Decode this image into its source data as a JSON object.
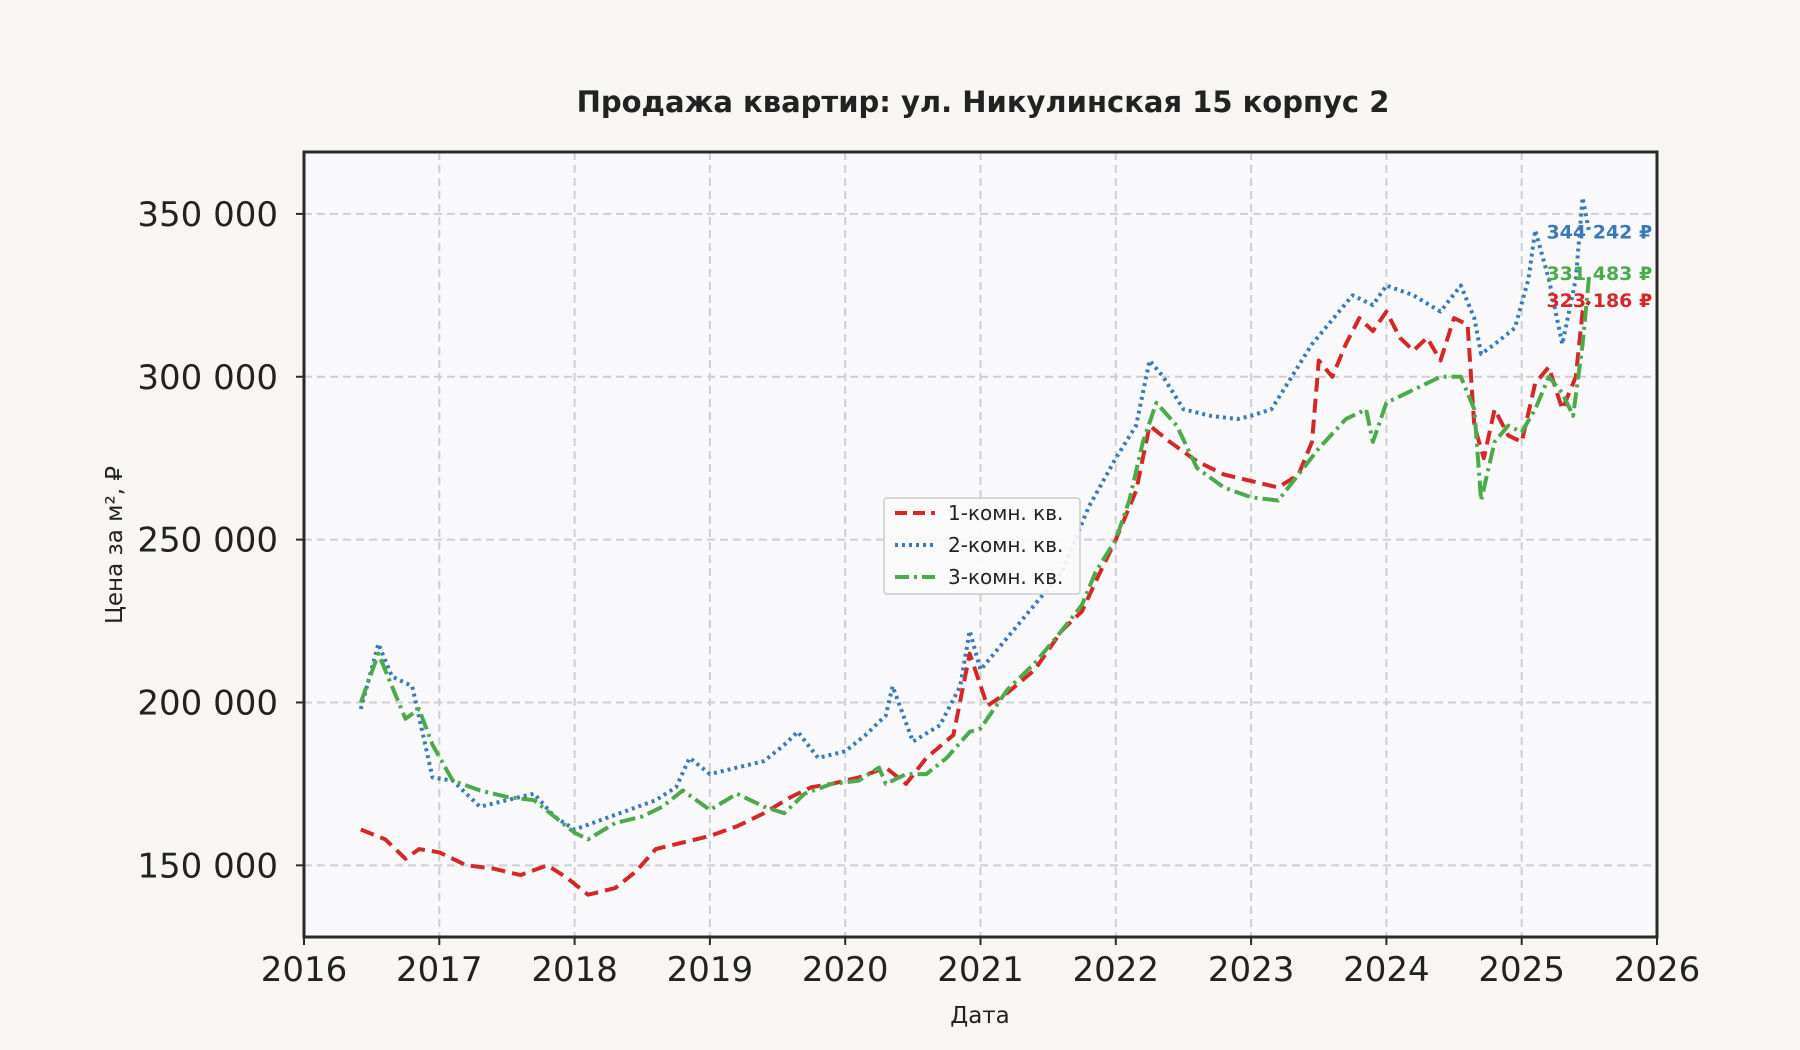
{
  "chart_data": {
    "type": "line",
    "title": "Продажа квартир: ул. Никулинская 15 корпус 2",
    "xlabel": "Дата",
    "ylabel": "Цена за м², ₽",
    "xlim": [
      2016.0,
      2026.0
    ],
    "ylim": [
      128000,
      369000
    ],
    "x_ticks": [
      2016,
      2017,
      2018,
      2019,
      2020,
      2021,
      2022,
      2023,
      2024,
      2025,
      2026
    ],
    "x_tick_labels": [
      "2016",
      "2017",
      "2018",
      "2019",
      "2020",
      "2021",
      "2022",
      "2023",
      "2024",
      "2025",
      "2026"
    ],
    "y_ticks": [
      150000,
      200000,
      250000,
      300000,
      350000
    ],
    "y_tick_labels": [
      "150 000",
      "200 000",
      "250 000",
      "300 000",
      "350 000"
    ],
    "grid": true,
    "legend_position": "center",
    "series": [
      {
        "name": "1-комн. кв.",
        "color": "#d62728",
        "dash": "dashed",
        "end_label": "323 186 ₽",
        "x": [
          2016.42,
          2016.6,
          2016.75,
          2016.85,
          2017.0,
          2017.2,
          2017.4,
          2017.6,
          2017.8,
          2017.95,
          2018.1,
          2018.3,
          2018.45,
          2018.6,
          2018.8,
          2019.0,
          2019.2,
          2019.4,
          2019.6,
          2019.75,
          2019.9,
          2020.1,
          2020.3,
          2020.45,
          2020.6,
          2020.8,
          2020.92,
          2021.05,
          2021.2,
          2021.4,
          2021.6,
          2021.75,
          2021.85,
          2022.0,
          2022.15,
          2022.25,
          2022.4,
          2022.6,
          2022.8,
          2023.0,
          2023.2,
          2023.35,
          2023.45,
          2023.5,
          2023.6,
          2023.7,
          2023.8,
          2023.9,
          2024.0,
          2024.1,
          2024.2,
          2024.3,
          2024.4,
          2024.5,
          2024.6,
          2024.65,
          2024.72,
          2024.8,
          2024.9,
          2025.0,
          2025.1,
          2025.2,
          2025.3,
          2025.4,
          2025.45,
          2025.5
        ],
        "y": [
          161000,
          158000,
          152000,
          155000,
          154000,
          150000,
          149000,
          147000,
          150000,
          146000,
          141000,
          143000,
          148000,
          155000,
          157000,
          159000,
          162000,
          166000,
          171000,
          174000,
          175000,
          177000,
          180000,
          175000,
          183000,
          190000,
          215000,
          199000,
          203000,
          210000,
          222000,
          228000,
          237000,
          250000,
          265000,
          285000,
          280000,
          274000,
          270000,
          268000,
          266000,
          270000,
          280000,
          305000,
          300000,
          310000,
          318000,
          314000,
          320000,
          312000,
          308000,
          312000,
          305000,
          318000,
          316000,
          285000,
          275000,
          290000,
          282000,
          280000,
          298000,
          303000,
          290000,
          300000,
          320000,
          323186
        ]
      },
      {
        "name": "2-комн. кв.",
        "color": "#3a7ab8",
        "dash": "dotted",
        "end_label": "344 242 ₽",
        "x": [
          2016.42,
          2016.55,
          2016.65,
          2016.8,
          2016.95,
          2017.1,
          2017.3,
          2017.5,
          2017.7,
          2017.85,
          2018.0,
          2018.2,
          2018.4,
          2018.6,
          2018.75,
          2018.85,
          2019.0,
          2019.2,
          2019.4,
          2019.55,
          2019.65,
          2019.8,
          2020.0,
          2020.15,
          2020.3,
          2020.35,
          2020.5,
          2020.7,
          2020.85,
          2020.92,
          2021.0,
          2021.2,
          2021.4,
          2021.6,
          2021.8,
          2022.0,
          2022.15,
          2022.25,
          2022.35,
          2022.5,
          2022.7,
          2022.9,
          2023.0,
          2023.15,
          2023.3,
          2023.45,
          2023.55,
          2023.65,
          2023.75,
          2023.9,
          2024.0,
          2024.2,
          2024.4,
          2024.55,
          2024.65,
          2024.7,
          2024.8,
          2024.95,
          2025.05,
          2025.1,
          2025.2,
          2025.3,
          2025.4,
          2025.45,
          2025.5
        ],
        "y": [
          198000,
          218000,
          208000,
          205000,
          177000,
          176000,
          168000,
          170000,
          172000,
          165000,
          161000,
          164000,
          167000,
          170000,
          174000,
          183000,
          178000,
          180000,
          182000,
          187000,
          191000,
          183000,
          185000,
          190000,
          196000,
          205000,
          188000,
          193000,
          205000,
          222000,
          210000,
          220000,
          230000,
          240000,
          260000,
          275000,
          285000,
          305000,
          300000,
          290000,
          288000,
          287000,
          288000,
          290000,
          300000,
          310000,
          315000,
          320000,
          325000,
          322000,
          328000,
          325000,
          320000,
          328000,
          318000,
          307000,
          310000,
          315000,
          330000,
          345000,
          330000,
          310000,
          330000,
          355000,
          344242
        ]
      },
      {
        "name": "3-комн. кв.",
        "color": "#4caa4c",
        "dash": "dashdot",
        "end_label": "331 483 ₽",
        "x": [
          2016.42,
          2016.55,
          2016.65,
          2016.75,
          2016.85,
          2016.95,
          2017.1,
          2017.3,
          2017.5,
          2017.7,
          2017.85,
          2018.0,
          2018.1,
          2018.3,
          2018.5,
          2018.65,
          2018.8,
          2019.0,
          2019.2,
          2019.4,
          2019.55,
          2019.7,
          2019.9,
          2020.1,
          2020.25,
          2020.3,
          2020.45,
          2020.6,
          2020.75,
          2020.92,
          2021.0,
          2021.2,
          2021.4,
          2021.6,
          2021.75,
          2021.85,
          2022.0,
          2022.1,
          2022.2,
          2022.3,
          2022.45,
          2022.6,
          2022.8,
          2023.0,
          2023.2,
          2023.35,
          2023.5,
          2023.7,
          2023.85,
          2023.9,
          2024.0,
          2024.2,
          2024.4,
          2024.55,
          2024.65,
          2024.7,
          2024.8,
          2024.9,
          2025.0,
          2025.1,
          2025.2,
          2025.3,
          2025.38,
          2025.45,
          2025.5
        ],
        "y": [
          200000,
          215000,
          205000,
          195000,
          198000,
          187000,
          176000,
          173000,
          171000,
          170000,
          165000,
          160000,
          158000,
          163000,
          165000,
          168000,
          173000,
          167000,
          172000,
          168000,
          166000,
          172000,
          175000,
          176000,
          180000,
          175000,
          178000,
          178000,
          183000,
          191000,
          192000,
          204000,
          212000,
          222000,
          230000,
          240000,
          250000,
          262000,
          280000,
          292000,
          285000,
          272000,
          266000,
          263000,
          262000,
          270000,
          278000,
          287000,
          290000,
          280000,
          292000,
          296000,
          300000,
          300000,
          290000,
          262000,
          280000,
          285000,
          283000,
          290000,
          300000,
          295000,
          288000,
          310000,
          331483
        ]
      }
    ]
  }
}
